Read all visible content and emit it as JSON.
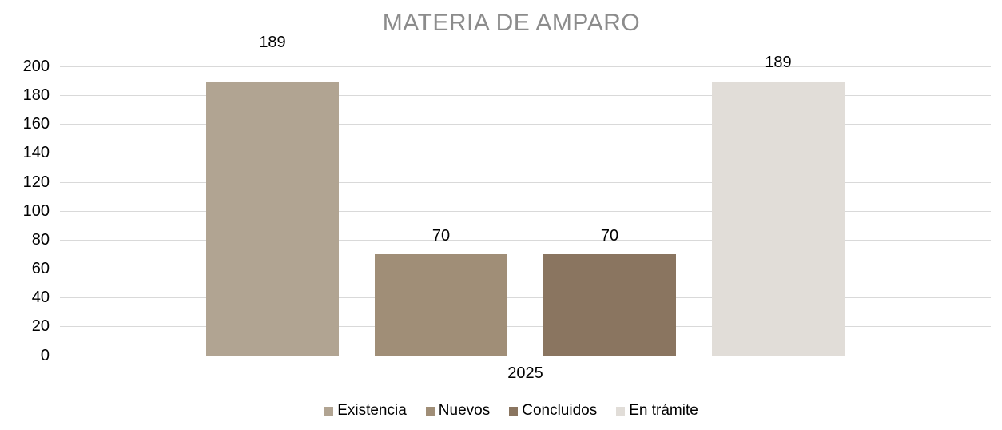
{
  "chart_data": {
    "type": "bar",
    "title": "MATERIA DE AMPARO",
    "title_color": "#8C8C8C",
    "categories": [
      "2025"
    ],
    "series": [
      {
        "name": "Existencia",
        "values": [
          189
        ],
        "color": "#B1A492"
      },
      {
        "name": "Nuevos",
        "values": [
          70
        ],
        "color": "#A08E77"
      },
      {
        "name": "Concluidos",
        "values": [
          70
        ],
        "color": "#8A7560"
      },
      {
        "name": "En trámite",
        "values": [
          189
        ],
        "color": "#E1DDD8"
      }
    ],
    "data_labels": [
      189,
      70,
      70,
      189
    ],
    "xlabel": "",
    "ylabel": "",
    "ylim": [
      0,
      200
    ],
    "yticks": [
      0,
      20,
      40,
      60,
      80,
      100,
      120,
      140,
      160,
      180,
      200
    ],
    "grid": true,
    "gridline_color": "#D9D9D9",
    "axis_line_color": "#D9D9D9",
    "tick_label_color": "#000000",
    "data_label_color": "#000000",
    "legend_position": "bottom",
    "legend_text_color": "#000000",
    "background": "#FFFFFF"
  }
}
